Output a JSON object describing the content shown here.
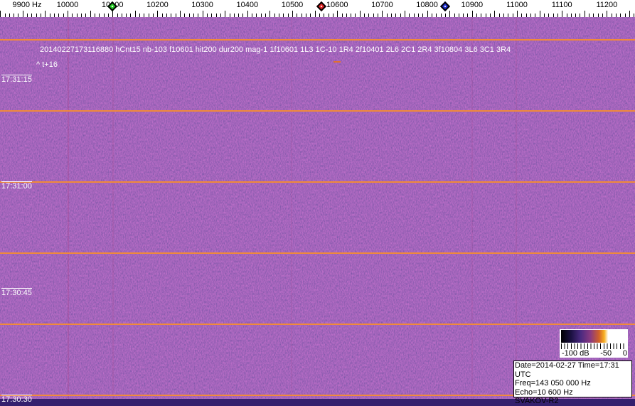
{
  "ruler": {
    "unit_label": "9900 Hz",
    "freq_labels": [
      "10000",
      "10100",
      "10200",
      "10300",
      "10400",
      "10500",
      "10600",
      "10700",
      "10800",
      "10900",
      "11000",
      "11100",
      "11200"
    ],
    "markers": [
      {
        "name": "green",
        "color": "#22cc22",
        "freq": 10100
      },
      {
        "name": "red",
        "color": "#dd2222",
        "freq": 10565
      },
      {
        "name": "blue",
        "color": "#1a2acc",
        "freq": 10840
      }
    ]
  },
  "spectrogram": {
    "background_color": "#34206e",
    "line_color": "#f08a3a",
    "detection_text": "20140227173116880 hCnt15 nb-103 f10601 hit200 dur200 mag-1 1f10601 1L3 1C-10 1R4 2f10401 2L6 2C1 2R4 3f10804 3L6 3C1 3R4",
    "offset_text": "^ t+16",
    "time_labels": [
      "17:31:15",
      "17:31:00",
      "17:30:45",
      "17:30:30"
    ]
  },
  "colorbar": {
    "labels": [
      "-100 dB",
      "-50",
      "0"
    ]
  },
  "info": {
    "line1": "Date=2014-02-27 Time=17:31 UTC",
    "line2": "Freq=143 050 000 Hz",
    "line3": "Echo=10 600 Hz",
    "line4": "SVAKOV-R2"
  }
}
